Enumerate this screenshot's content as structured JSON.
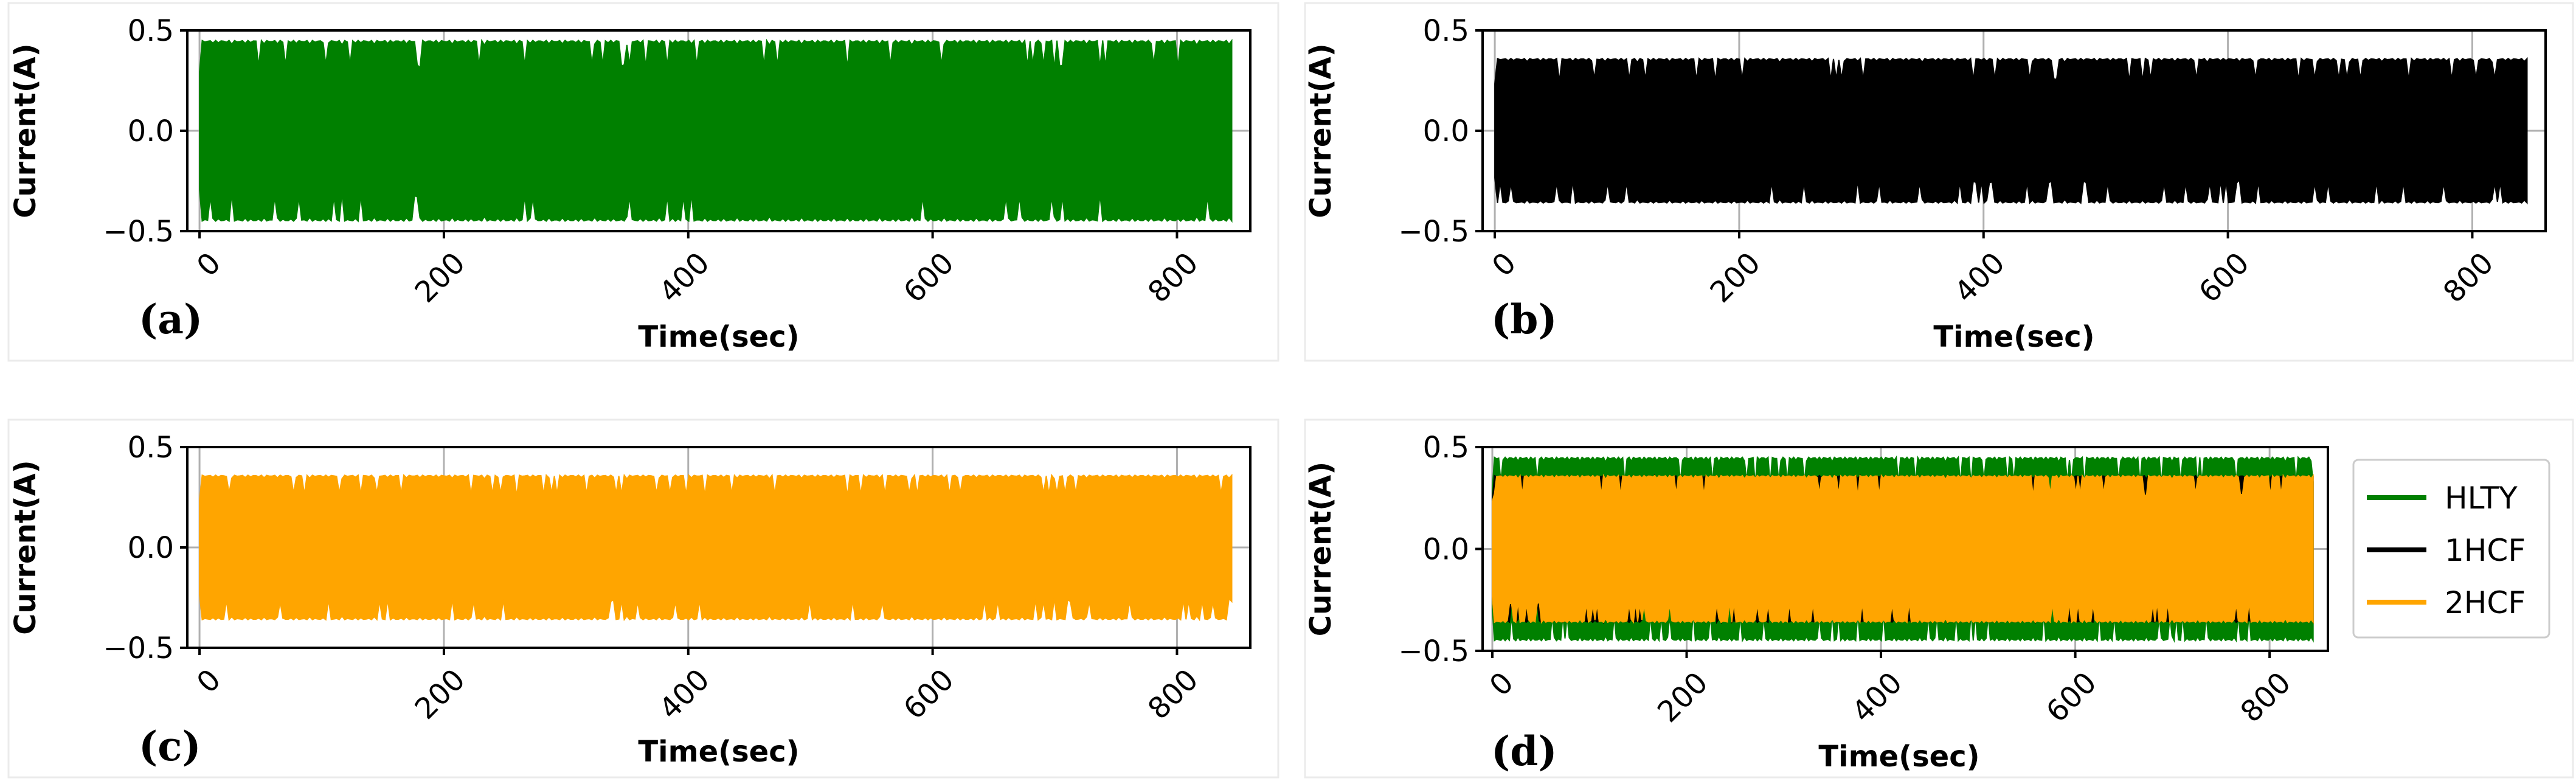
{
  "chart_data": [
    {
      "id": "a",
      "panel_label": "(a)",
      "type": "line",
      "xlabel": "Time(sec)",
      "ylabel": "Current(A)",
      "xlim": [
        -10,
        860
      ],
      "ylim": [
        -0.5,
        0.5
      ],
      "xticks": [
        0,
        200,
        400,
        600,
        800
      ],
      "xtick_labels": [
        "0",
        "200",
        "400",
        "600",
        "800"
      ],
      "yticks": [
        -0.5,
        0.0,
        0.5
      ],
      "ytick_labels": [
        "−0.5",
        "0.0",
        "0.5"
      ],
      "grid": true,
      "series": [
        {
          "name": "HLTY",
          "color": "#008000",
          "x_range": [
            0,
            845
          ],
          "envelope_max": 0.45,
          "envelope_min": -0.45,
          "envelope_dip": 0.33
        }
      ]
    },
    {
      "id": "b",
      "panel_label": "(b)",
      "type": "line",
      "xlabel": "Time(sec)",
      "ylabel": "Current(A)",
      "xlim": [
        -10,
        860
      ],
      "ylim": [
        -0.5,
        0.5
      ],
      "xticks": [
        0,
        200,
        400,
        600,
        800
      ],
      "xtick_labels": [
        "0",
        "200",
        "400",
        "600",
        "800"
      ],
      "yticks": [
        -0.5,
        0.0,
        0.5
      ],
      "ytick_labels": [
        "−0.5",
        "0.0",
        "0.5"
      ],
      "grid": true,
      "series": [
        {
          "name": "1HCF",
          "color": "#000000",
          "x_range": [
            0,
            845
          ],
          "envelope_max": 0.36,
          "envelope_min": -0.36,
          "envelope_dip": 0.26
        }
      ]
    },
    {
      "id": "c",
      "panel_label": "(c)",
      "type": "line",
      "xlabel": "Time(sec)",
      "ylabel": "Current(A)",
      "xlim": [
        -10,
        860
      ],
      "ylim": [
        -0.5,
        0.5
      ],
      "xticks": [
        0,
        200,
        400,
        600,
        800
      ],
      "xtick_labels": [
        "0",
        "200",
        "400",
        "600",
        "800"
      ],
      "yticks": [
        -0.5,
        0.0,
        0.5
      ],
      "ytick_labels": [
        "−0.5",
        "0.0",
        "0.5"
      ],
      "grid": true,
      "series": [
        {
          "name": "2HCF",
          "color": "#ffa500",
          "x_range": [
            0,
            845
          ],
          "envelope_max": 0.36,
          "envelope_min": -0.36,
          "envelope_dip": 0.27
        }
      ]
    },
    {
      "id": "d",
      "panel_label": "(d)",
      "type": "line",
      "xlabel": "Time(sec)",
      "ylabel": "Current(A)",
      "xlim": [
        -10,
        860
      ],
      "ylim": [
        -0.5,
        0.5
      ],
      "xticks": [
        0,
        200,
        400,
        600,
        800
      ],
      "xtick_labels": [
        "0",
        "200",
        "400",
        "600",
        "800"
      ],
      "yticks": [
        -0.5,
        0.0,
        0.5
      ],
      "ytick_labels": [
        "−0.5",
        "0.0",
        "0.5"
      ],
      "grid": true,
      "legend": {
        "placement": "outside-right",
        "entries": [
          "HLTY",
          "1HCF",
          "2HCF"
        ]
      },
      "series": [
        {
          "name": "HLTY",
          "color": "#008000",
          "x_range": [
            0,
            845
          ],
          "envelope_max": 0.45,
          "envelope_min": -0.45,
          "envelope_dip": 0.33
        },
        {
          "name": "1HCF",
          "color": "#000000",
          "x_range": [
            0,
            845
          ],
          "envelope_max": 0.36,
          "envelope_min": -0.36,
          "envelope_dip": 0.26
        },
        {
          "name": "2HCF",
          "color": "#ffa500",
          "x_range": [
            0,
            845
          ],
          "envelope_max": 0.36,
          "envelope_min": -0.36,
          "envelope_dip": 0.27
        }
      ]
    }
  ]
}
